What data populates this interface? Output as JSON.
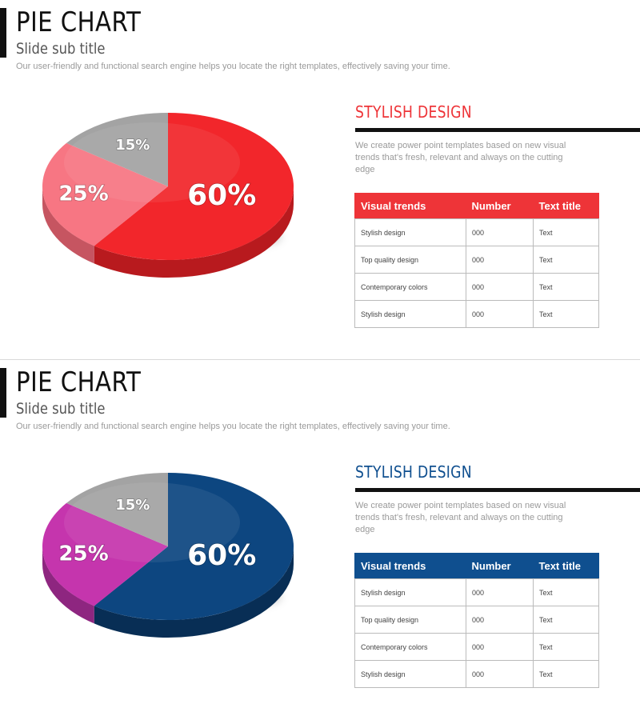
{
  "slides": [
    {
      "title": "PIE CHART",
      "subtitle": "Slide sub title",
      "description": "Our user-friendly and functional search engine helps you locate the right templates, effectively saving your time.",
      "section_title": "STYLISH DESIGN",
      "section_text": "We create power point templates based on new visual trends that's fresh, relevant and always on the cutting edge",
      "accent": "#ee3438",
      "table": {
        "headers": [
          "Visual trends",
          "Number",
          "Text title"
        ],
        "rows": [
          [
            "Stylish design",
            "000",
            "Text"
          ],
          [
            "Top quality design",
            "000",
            "Text"
          ],
          [
            "Contemporary colors",
            "000",
            "Text"
          ],
          [
            "Stylish design",
            "000",
            "Text"
          ]
        ]
      }
    },
    {
      "title": "PIE CHART",
      "subtitle": "Slide sub title",
      "description": "Our user-friendly and functional search engine helps you locate the right templates, effectively saving your time.",
      "section_title": "STYLISH DESIGN",
      "section_text": "We create power point templates based on new visual trends that's fresh, relevant and always on the cutting edge",
      "accent": "#0f4f8f",
      "table": {
        "headers": [
          "Visual trends",
          "Number",
          "Text title"
        ],
        "rows": [
          [
            "Stylish design",
            "000",
            "Text"
          ],
          [
            "Top quality design",
            "000",
            "Text"
          ],
          [
            "Contemporary colors",
            "000",
            "Text"
          ],
          [
            "Stylish design",
            "000",
            "Text"
          ]
        ]
      }
    }
  ],
  "chart_data": [
    {
      "type": "pie",
      "title": "",
      "labels": [
        "60%",
        "25%",
        "15%"
      ],
      "values": [
        60,
        25,
        15
      ],
      "colors": [
        "#f2262b",
        "#f77683",
        "#a3a3a3"
      ],
      "side_colors": [
        "#b81a1e",
        "#c65561",
        "#7c7c7c"
      ]
    },
    {
      "type": "pie",
      "title": "",
      "labels": [
        "60%",
        "25%",
        "15%"
      ],
      "values": [
        60,
        25,
        15
      ],
      "colors": [
        "#0d4680",
        "#c535ad",
        "#a3a3a3"
      ],
      "side_colors": [
        "#082e55",
        "#8e2680",
        "#7c7c7c"
      ]
    }
  ]
}
